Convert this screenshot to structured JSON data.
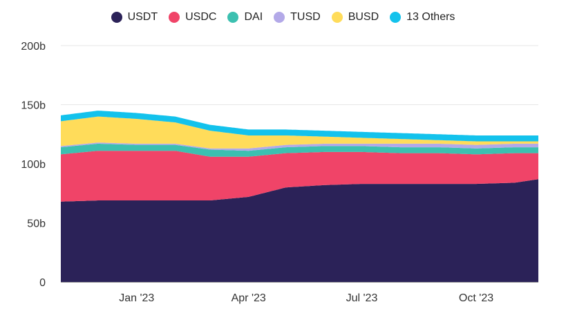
{
  "chart_data": {
    "type": "area",
    "stacked": true,
    "title": "",
    "xlabel": "",
    "ylabel": "",
    "ylim": [
      0,
      200
    ],
    "y_ticks": [
      "0",
      "50b",
      "100b",
      "150b",
      "200b"
    ],
    "x_tick_labels": [
      "Jan '23",
      "Apr '23",
      "Jul '23",
      "Oct '23"
    ],
    "x": [
      "2022-11-01",
      "2022-12-01",
      "2023-01-01",
      "2023-02-01",
      "2023-03-01",
      "2023-04-01",
      "2023-05-01",
      "2023-06-01",
      "2023-07-01",
      "2023-08-01",
      "2023-09-01",
      "2023-10-01",
      "2023-11-01",
      "2023-11-20"
    ],
    "legend_position": "top-center",
    "grid": true,
    "series": [
      {
        "name": "USDT",
        "color": "#2B2258",
        "values": [
          68,
          69,
          69,
          69,
          69,
          72,
          80,
          82,
          83,
          83,
          83,
          83,
          84,
          87
        ]
      },
      {
        "name": "USDC",
        "color": "#F04468",
        "values": [
          40,
          42,
          42,
          42,
          37,
          34,
          29,
          28,
          27,
          26,
          26,
          25,
          25,
          22
        ]
      },
      {
        "name": "DAI",
        "color": "#3CC0B0",
        "values": [
          6,
          6,
          5,
          5,
          6,
          5,
          5,
          5,
          5,
          5,
          5,
          5,
          5,
          5
        ]
      },
      {
        "name": "TUSD",
        "color": "#B3A9E8",
        "values": [
          1,
          1,
          1,
          1,
          1,
          2,
          2,
          2,
          2,
          3,
          3,
          3,
          3,
          3
        ]
      },
      {
        "name": "BUSD",
        "color": "#FFDC5A",
        "values": [
          21,
          22,
          21,
          18,
          15,
          11,
          8,
          6,
          5,
          4,
          3,
          3,
          2,
          2
        ]
      },
      {
        "name": "13 Others",
        "color": "#13C2EC",
        "values": [
          5,
          5,
          5,
          5,
          5,
          5,
          5,
          5,
          5,
          5,
          5,
          5,
          5,
          5
        ]
      }
    ]
  }
}
